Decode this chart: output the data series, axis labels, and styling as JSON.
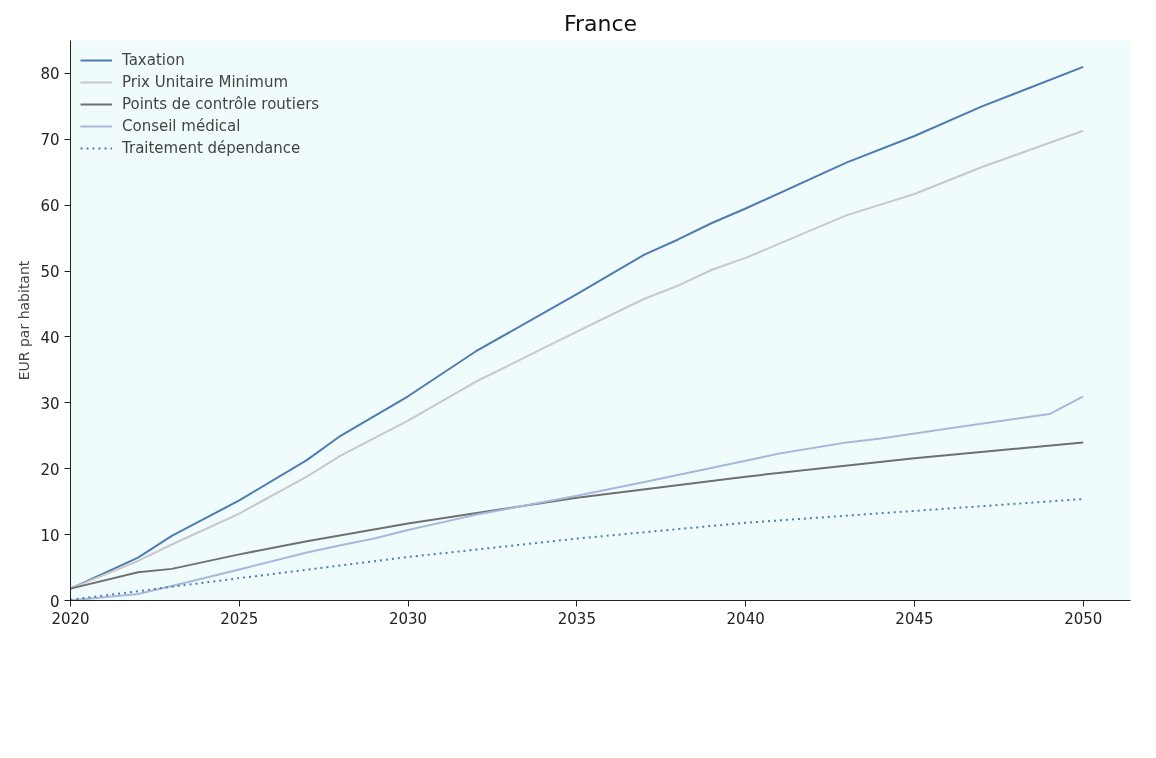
{
  "chart_data": {
    "type": "line",
    "title": "France",
    "ylabel": "EUR par habitant",
    "xlim": [
      2020,
      2051.4
    ],
    "ylim": [
      0,
      85
    ],
    "xticks": [
      2020,
      2025,
      2030,
      2035,
      2040,
      2045,
      2050
    ],
    "yticks": [
      0,
      10,
      20,
      30,
      40,
      50,
      60,
      70,
      80
    ],
    "grid": false,
    "legend": "top left",
    "series": [
      {
        "name": "Taxation",
        "color": "#4f7cb0",
        "line_style": "solid",
        "x": [
          2020,
          2022,
          2023,
          2025,
          2027,
          2028,
          2030,
          2032,
          2035,
          2037,
          2038,
          2039,
          2040,
          2043,
          2045,
          2047,
          2048,
          2050
        ],
        "values": [
          1.8,
          6.5,
          9.8,
          15.2,
          21.3,
          25,
          31,
          37.8,
          46.5,
          52.5,
          54.8,
          57.3,
          59.5,
          66.5,
          70.5,
          75,
          77,
          81
        ]
      },
      {
        "name": "Prix Unitaire Minimum",
        "color": "#c8c8c8",
        "line_style": "solid",
        "x": [
          2020,
          2022,
          2023,
          2025,
          2027,
          2028,
          2030,
          2032,
          2035,
          2037,
          2038,
          2039,
          2040,
          2043,
          2045,
          2047,
          2050
        ],
        "values": [
          1.8,
          6,
          8.5,
          13.2,
          18.8,
          22,
          27.3,
          33.2,
          40.8,
          45.8,
          47.8,
          50.2,
          52,
          58.5,
          61.7,
          65.8,
          71.3
        ]
      },
      {
        "name": "Points de contrôle routiers",
        "color": "#707070",
        "line_style": "solid",
        "x": [
          2020,
          2022,
          2023,
          2025,
          2027,
          2030,
          2035,
          2040,
          2045,
          2050
        ],
        "values": [
          1.8,
          4.3,
          4.8,
          7,
          9,
          11.7,
          15.6,
          18.8,
          21.6,
          24
        ]
      },
      {
        "name": "Conseil médical",
        "color": "#a8b8dc",
        "line_style": "solid",
        "x": [
          2020,
          2022,
          2023,
          2025,
          2027,
          2028,
          2029,
          2030,
          2032,
          2035,
          2037,
          2040,
          2041,
          2043,
          2044,
          2046,
          2049,
          2050
        ],
        "values": [
          0,
          1,
          2.2,
          4.7,
          7.3,
          8.4,
          9.4,
          10.7,
          13,
          15.9,
          18,
          21.2,
          22.3,
          24,
          24.6,
          26.1,
          28.3,
          31
        ]
      },
      {
        "name": "Traitement dépendance",
        "color": "#4f7cb0",
        "line_style": "dotted",
        "x": [
          2020,
          2025,
          2030,
          2035,
          2040,
          2045,
          2050
        ],
        "values": [
          0.1,
          3.4,
          6.6,
          9.4,
          11.8,
          13.6,
          15.4
        ]
      }
    ]
  }
}
